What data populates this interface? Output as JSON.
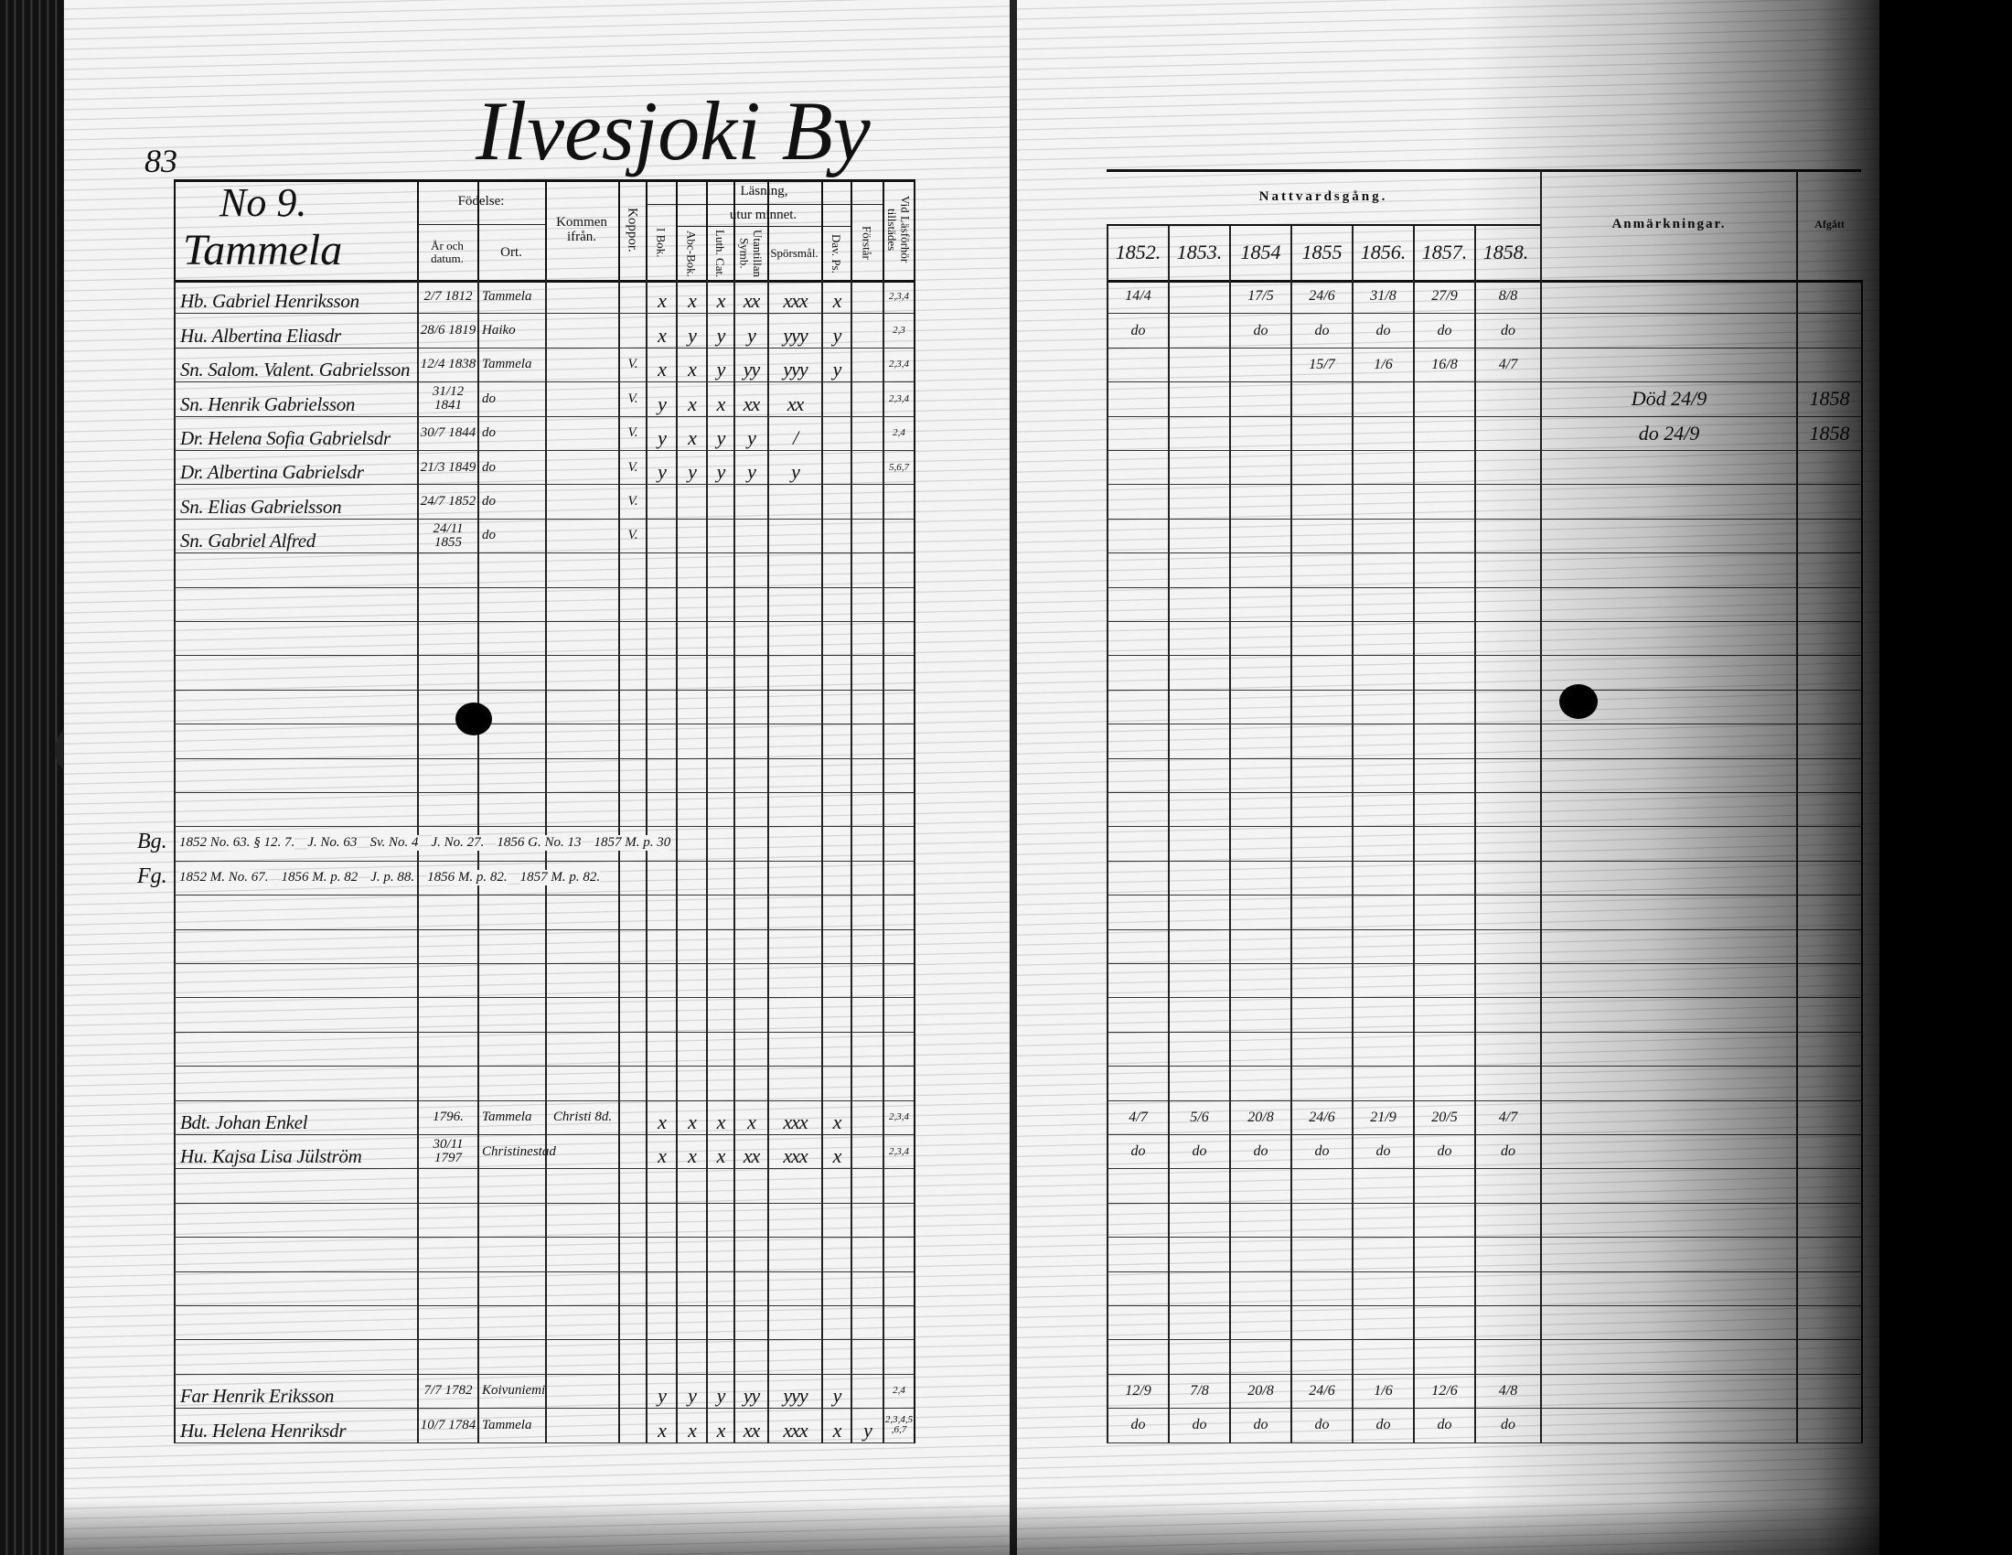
{
  "page_number": "83",
  "village_title": "Ilvesjoki By",
  "household": {
    "number": "No 9.",
    "name": "Tammela"
  },
  "headers": {
    "birth": "Födelse:",
    "year_date": "År och datum.",
    "place": "Ort.",
    "came_from": "Kommen ifrån.",
    "vaccination": "Koppor.",
    "reading": "Läsning,",
    "by_heart": "utur minnet.",
    "reading_cols": [
      "I Bok.",
      "Abc-Bok.",
      "Luth. Cat.",
      "Utantillan Symb.",
      "Spörsmål.",
      "Dav. Ps.",
      "Förstår"
    ],
    "hearing": "Vid Läsförhör tillstädes",
    "communion": "Nattvardsgång.",
    "years": [
      "1852.",
      "1853.",
      "1854",
      "1855",
      "1856.",
      "1857.",
      "1858."
    ],
    "remarks": "Anmärkningar.",
    "departed": "Afgått"
  },
  "persons": [
    {
      "name": "Hb. Gabriel Henriksson",
      "birth_date": "2/7 1812",
      "birth_place": "Tammela",
      "came_from": "",
      "vaccination": "",
      "reading": [
        "x",
        "x",
        "x",
        "xx",
        "xxx",
        "x",
        ""
      ],
      "hearing": "2,3,4",
      "communion": [
        "14/4",
        "",
        "17/5",
        "24/6",
        "31/8",
        "27/9",
        "8/8"
      ],
      "remarks": "",
      "departed": ""
    },
    {
      "name": "Hu. Albertina Eliasdr",
      "birth_date": "28/6 1819",
      "birth_place": "Haiko",
      "came_from": "",
      "vaccination": "",
      "reading": [
        "x",
        "y",
        "y",
        "y",
        "yyy",
        "y",
        ""
      ],
      "hearing": "2,3",
      "communion": [
        "do",
        "",
        "do",
        "do",
        "do",
        "do",
        "do"
      ],
      "remarks": "",
      "departed": ""
    },
    {
      "name": "Sn. Salom. Valent. Gabrielsson",
      "birth_date": "12/4 1838",
      "birth_place": "Tammela",
      "came_from": "",
      "vaccination": "V.",
      "reading": [
        "x",
        "x",
        "y",
        "yy",
        "yyy",
        "y",
        ""
      ],
      "hearing": "2,3,4",
      "communion": [
        "",
        "",
        "",
        "15/7",
        "1/6",
        "16/8",
        "4/7"
      ],
      "remarks": "",
      "departed": ""
    },
    {
      "name": "Sn. Henrik Gabrielsson",
      "birth_date": "31/12 1841",
      "birth_place": "do",
      "came_from": "",
      "vaccination": "V.",
      "reading": [
        "y",
        "x",
        "x",
        "xx",
        "xx",
        "",
        ""
      ],
      "hearing": "2,3,4",
      "communion": [
        "",
        "",
        "",
        "",
        "",
        "",
        ""
      ],
      "remarks": "Död 24/9",
      "departed": "1858"
    },
    {
      "name": "Dr. Helena Sofia Gabrielsdr",
      "birth_date": "30/7 1844",
      "birth_place": "do",
      "came_from": "",
      "vaccination": "V.",
      "reading": [
        "y",
        "x",
        "y",
        "y",
        "/",
        "",
        ""
      ],
      "hearing": "2,4",
      "communion": [
        "",
        "",
        "",
        "",
        "",
        "",
        ""
      ],
      "remarks": "do 24/9",
      "departed": "1858"
    },
    {
      "name": "Dr. Albertina Gabrielsdr",
      "birth_date": "21/3 1849",
      "birth_place": "do",
      "came_from": "",
      "vaccination": "V.",
      "reading": [
        "y",
        "y",
        "y",
        "y",
        "y",
        "",
        ""
      ],
      "hearing": "5,6,7",
      "communion": [
        "",
        "",
        "",
        "",
        "",
        "",
        ""
      ],
      "remarks": "",
      "departed": ""
    },
    {
      "name": "Sn. Elias Gabrielsson",
      "birth_date": "24/7 1852",
      "birth_place": "do",
      "came_from": "",
      "vaccination": "V.",
      "reading": [
        "",
        "",
        "",
        "",
        "",
        "",
        ""
      ],
      "hearing": "",
      "communion": [
        "",
        "",
        "",
        "",
        "",
        "",
        ""
      ],
      "remarks": "",
      "departed": ""
    },
    {
      "name": "Sn. Gabriel Alfred",
      "birth_date": "24/11 1855",
      "birth_place": "do",
      "came_from": "",
      "vaccination": "V.",
      "reading": [
        "",
        "",
        "",
        "",
        "",
        "",
        ""
      ],
      "hearing": "",
      "communion": [
        "",
        "",
        "",
        "",
        "",
        "",
        ""
      ],
      "remarks": "",
      "departed": ""
    },
    {
      "name": "Bdt. Johan Enkel",
      "birth_date": "1796.",
      "birth_place": "Tammela",
      "came_from": "Christi 8d.",
      "vaccination": "",
      "reading": [
        "x",
        "x",
        "x",
        "x",
        "xxx",
        "x",
        ""
      ],
      "hearing": "2,3,4",
      "communion": [
        "4/7",
        "5/6",
        "20/8",
        "24/6",
        "21/9",
        "20/5",
        "4/7"
      ],
      "remarks": "",
      "departed": ""
    },
    {
      "name": "Hu. Kajsa Lisa Jülström",
      "birth_date": "30/11 1797",
      "birth_place": "Christinestad",
      "came_from": "",
      "vaccination": "",
      "reading": [
        "x",
        "x",
        "x",
        "xx",
        "xxx",
        "x",
        ""
      ],
      "hearing": "2,3,4",
      "communion": [
        "do",
        "do",
        "do",
        "do",
        "do",
        "do",
        "do"
      ],
      "remarks": "",
      "departed": ""
    },
    {
      "name": "Far Henrik Eriksson",
      "birth_date": "7/7 1782",
      "birth_place": "Koivuniemi",
      "came_from": "",
      "vaccination": "",
      "reading": [
        "y",
        "y",
        "y",
        "yy",
        "yyy",
        "y",
        ""
      ],
      "hearing": "2,4",
      "communion": [
        "12/9",
        "7/8",
        "20/8",
        "24/6",
        "1/6",
        "12/6",
        "4/8"
      ],
      "remarks": "",
      "departed": ""
    },
    {
      "name": "Hu. Helena Henriksdr",
      "birth_date": "10/7 1784",
      "birth_place": "Tammela",
      "came_from": "",
      "vaccination": "",
      "reading": [
        "x",
        "x",
        "x",
        "xx",
        "xxx",
        "x",
        "y"
      ],
      "hearing": "2,3,4,5,6,7",
      "communion": [
        "do",
        "do",
        "do",
        "do",
        "do",
        "do",
        "do"
      ],
      "remarks": "",
      "departed": ""
    }
  ],
  "references": {
    "bg_label": "Bg.",
    "fg_label": "Fg.",
    "bg": [
      "1852 No. 63. § 12. 7.",
      "J. No. 63",
      "Sv. No. 4",
      "J. No. 27.",
      "1856 G. No. 13",
      "1857 M. p. 30"
    ],
    "fg": [
      "1852 M. No. 67.",
      "1856 M. p. 82",
      "J. p. 88.",
      "1856 M. p. 82.",
      "1857 M. p. 82."
    ]
  }
}
